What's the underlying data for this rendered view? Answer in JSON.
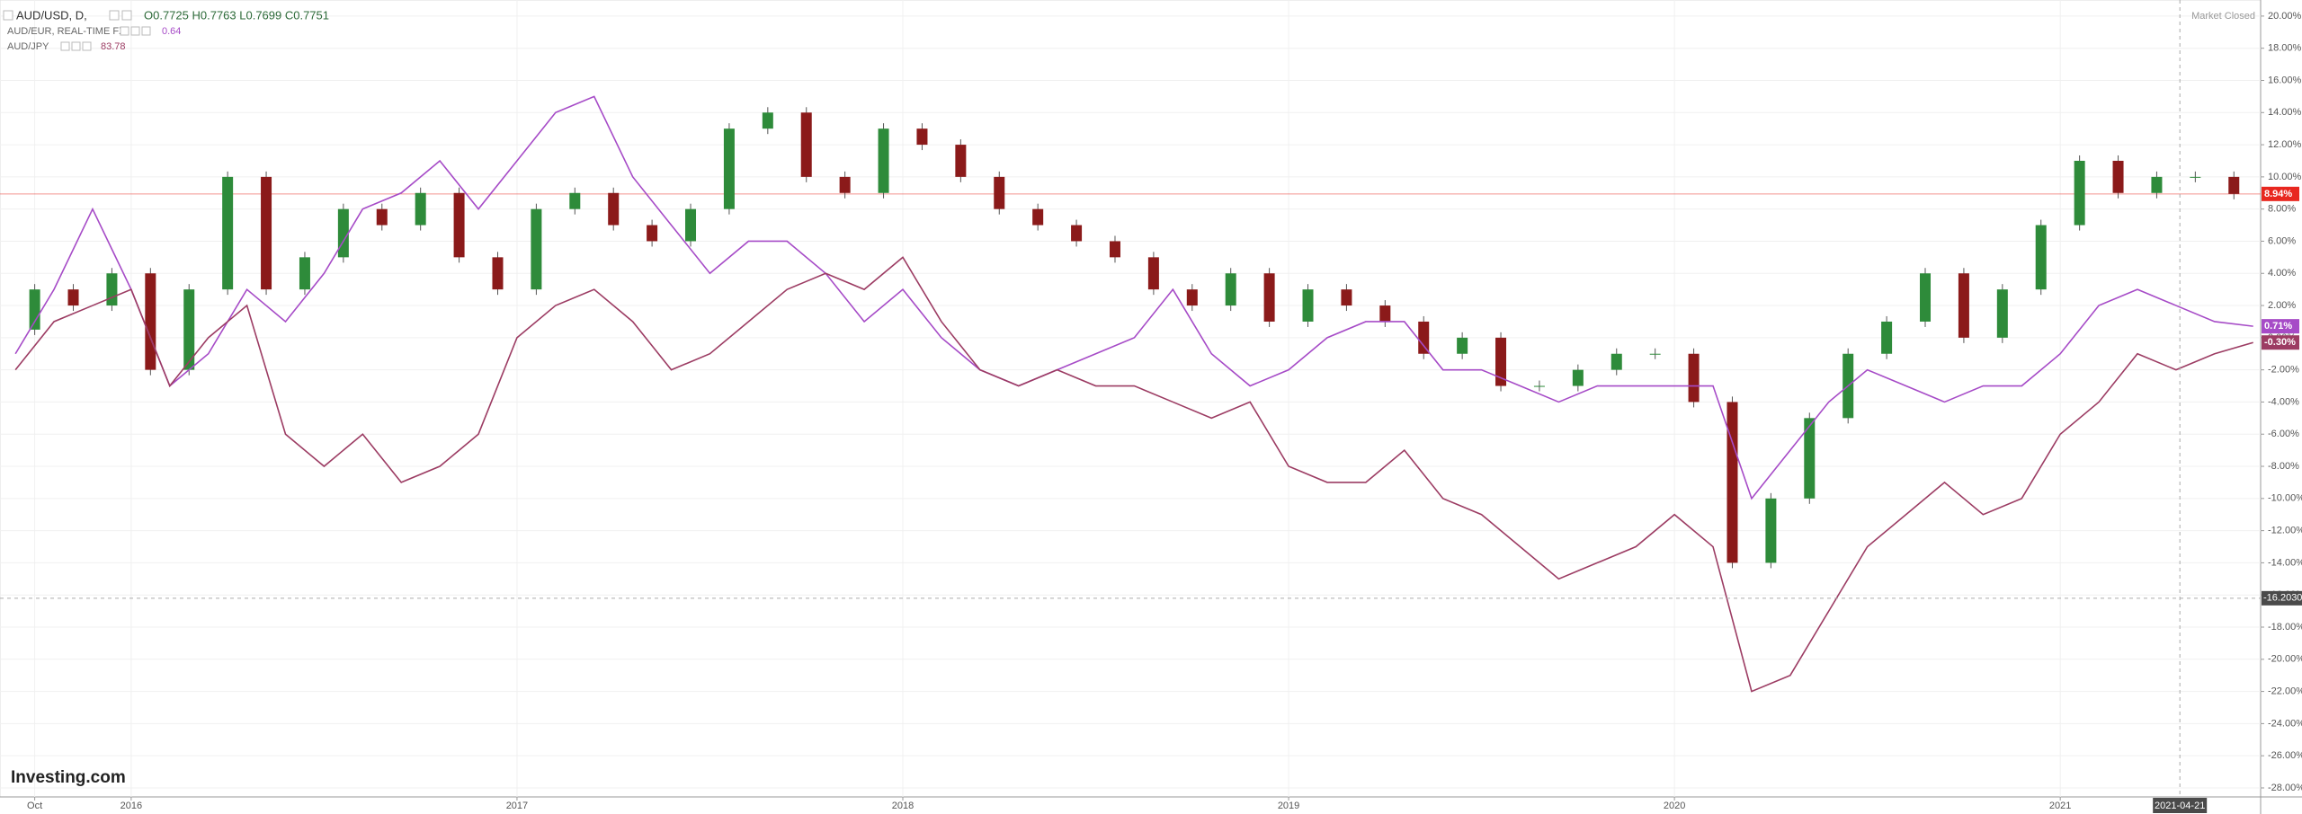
{
  "chart_data": {
    "type": "line",
    "x": [
      2015.7,
      2015.8,
      2015.9,
      2016.0,
      2016.1,
      2016.2,
      2016.3,
      2016.4,
      2016.5,
      2016.6,
      2016.7,
      2016.8,
      2016.9,
      2017.0,
      2017.1,
      2017.2,
      2017.3,
      2017.4,
      2017.5,
      2017.6,
      2017.7,
      2017.8,
      2017.9,
      2018.0,
      2018.1,
      2018.2,
      2018.3,
      2018.4,
      2018.5,
      2018.6,
      2018.7,
      2018.8,
      2018.9,
      2019.0,
      2019.1,
      2019.2,
      2019.3,
      2019.4,
      2019.5,
      2019.6,
      2019.7,
      2019.8,
      2019.9,
      2020.0,
      2020.1,
      2020.2,
      2020.3,
      2020.4,
      2020.5,
      2020.6,
      2020.7,
      2020.8,
      2020.9,
      2021.0,
      2021.1,
      2021.2,
      2021.3,
      2021.4,
      2021.5
    ],
    "series": [
      {
        "name": "AUD/USD, D,",
        "style": "candle",
        "color": "#e8271f",
        "up_color": "#2e8b3a",
        "down_color": "#8b1a1a",
        "legend_value": "O0.7725 H0.7763 L0.7699 C0.7751",
        "last_label": "8.94%",
        "values": [
          0.5,
          3,
          2,
          4,
          -2,
          3,
          10,
          3,
          5,
          8,
          7,
          9,
          5,
          3,
          8,
          9,
          7,
          6,
          8,
          13,
          14,
          10,
          9,
          13,
          12,
          10,
          8,
          7,
          6,
          5,
          3,
          2,
          4,
          1,
          3,
          2,
          1,
          -1,
          0,
          -3,
          -3,
          -2,
          -1,
          -1,
          -4,
          -14,
          -10,
          -5,
          -1,
          1,
          4,
          0,
          3,
          7,
          11,
          9,
          10,
          10,
          8.94
        ]
      },
      {
        "name": "AUD/EUR, REAL-TIME FX",
        "style": "line",
        "color": "#a64bc7",
        "legend_value": "0.64",
        "last_label": "0.71%",
        "values": [
          -1,
          3,
          8,
          3,
          -3,
          -1,
          3,
          1,
          4,
          8,
          9,
          11,
          8,
          11,
          14,
          15,
          10,
          7,
          4,
          6,
          6,
          4,
          1,
          3,
          0,
          -2,
          -3,
          -2,
          -1,
          0,
          3,
          -1,
          -3,
          -2,
          0,
          1,
          1,
          -2,
          -2,
          -3,
          -4,
          -3,
          -3,
          -3,
          -3,
          -10,
          -7,
          -4,
          -2,
          -3,
          -4,
          -3,
          -3,
          -1,
          2,
          3,
          2,
          1,
          0.71
        ]
      },
      {
        "name": "AUD/JPY",
        "style": "line",
        "color": "#9c3c63",
        "legend_value": "83.78",
        "last_label": "-0.30%",
        "values": [
          -2,
          1,
          2,
          3,
          -3,
          0,
          2,
          -6,
          -8,
          -6,
          -9,
          -8,
          -6,
          0,
          2,
          3,
          1,
          -2,
          -1,
          1,
          3,
          4,
          3,
          5,
          1,
          -2,
          -3,
          -2,
          -3,
          -3,
          -4,
          -5,
          -4,
          -8,
          -9,
          -9,
          -7,
          -10,
          -11,
          -13,
          -15,
          -14,
          -13,
          -11,
          -13,
          -22,
          -21,
          -17,
          -13,
          -11,
          -9,
          -11,
          -10,
          -6,
          -4,
          -1,
          -2,
          -1,
          -0.3
        ]
      }
    ],
    "xlim": [
      2015.66,
      2021.51
    ],
    "xticks": [
      {
        "value": 2015.75,
        "label": "Oct"
      },
      2016,
      2017,
      2018,
      2019,
      2020,
      2021
    ],
    "ylim": [
      -28.56,
      21.0
    ],
    "yticks": [
      {
        "value": 20,
        "label": "20.00%"
      },
      {
        "value": 18,
        "label": "18.00%"
      },
      {
        "value": 16,
        "label": "16.00%"
      },
      {
        "value": 14,
        "label": "14.00%"
      },
      {
        "value": 12,
        "label": "12.00%"
      },
      {
        "value": 10,
        "label": "10.00%"
      },
      {
        "value": 8,
        "label": "8.00%"
      },
      {
        "value": 6,
        "label": "6.00%"
      },
      {
        "value": 4,
        "label": "4.00%"
      },
      {
        "value": 2,
        "label": "2.00%"
      },
      {
        "value": 0,
        "label": "0.00%"
      },
      {
        "value": -2,
        "label": "-2.00%"
      },
      {
        "value": -4,
        "label": "-4.00%"
      },
      {
        "value": -6,
        "label": "-6.00%"
      },
      {
        "value": -8,
        "label": "-8.00%"
      },
      {
        "value": -10,
        "label": "-10.00%"
      },
      {
        "value": -12,
        "label": "-12.00%"
      },
      {
        "value": -14,
        "label": "-14.00%"
      },
      {
        "value": -16,
        "label": "-16.00%"
      },
      {
        "value": -18,
        "label": "-18.00%"
      },
      {
        "value": -20,
        "label": "-20.00%"
      },
      {
        "value": -22,
        "label": "-22.00%"
      },
      {
        "value": -24,
        "label": "-24.00%"
      },
      {
        "value": -26,
        "label": "-26.00%"
      },
      {
        "value": -28,
        "label": "-28.00%"
      }
    ],
    "grid": true,
    "crosshair": {
      "x": 2021.31,
      "x_label": "2021-04-21",
      "y": -16.203,
      "y_label": "-16.2030"
    },
    "status": "Market Closed",
    "brand": "Investing.com"
  }
}
